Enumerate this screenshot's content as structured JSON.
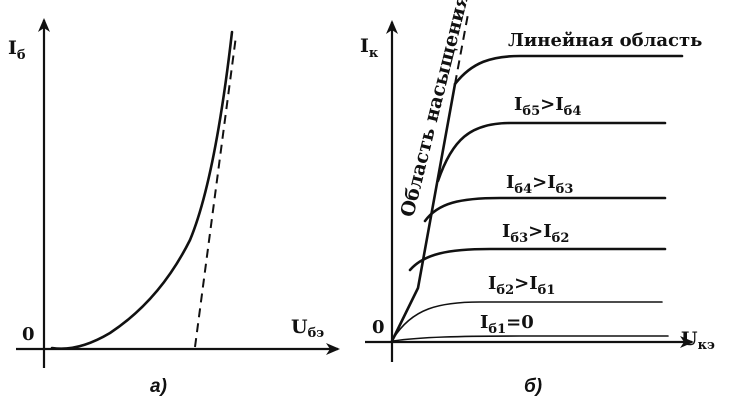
{
  "left_graph": {
    "y_axis_label": "I",
    "y_axis_sub": "б",
    "x_axis_label": "U",
    "x_axis_sub": "бэ",
    "origin": "0",
    "caption": "а)"
  },
  "right_graph": {
    "y_axis_label": "I",
    "y_axis_sub": "к",
    "x_axis_label": "U",
    "x_axis_sub": "кэ",
    "origin": "0",
    "caption": "б)",
    "saturation_label": "Область насыщения",
    "linear_label": "Линейная область",
    "curve_labels": [
      {
        "a": "I",
        "as": "б5",
        "op": ">",
        "b": "I",
        "bs": "б4"
      },
      {
        "a": "I",
        "as": "б4",
        "op": ">",
        "b": "I",
        "bs": "б3"
      },
      {
        "a": "I",
        "as": "б3",
        "op": ">",
        "b": "I",
        "bs": "б2"
      },
      {
        "a": "I",
        "as": "б2",
        "op": ">",
        "b": "I",
        "bs": "б1"
      },
      {
        "a": "I",
        "as": "б1",
        "op": "=",
        "b": "0",
        "bs": ""
      }
    ]
  }
}
